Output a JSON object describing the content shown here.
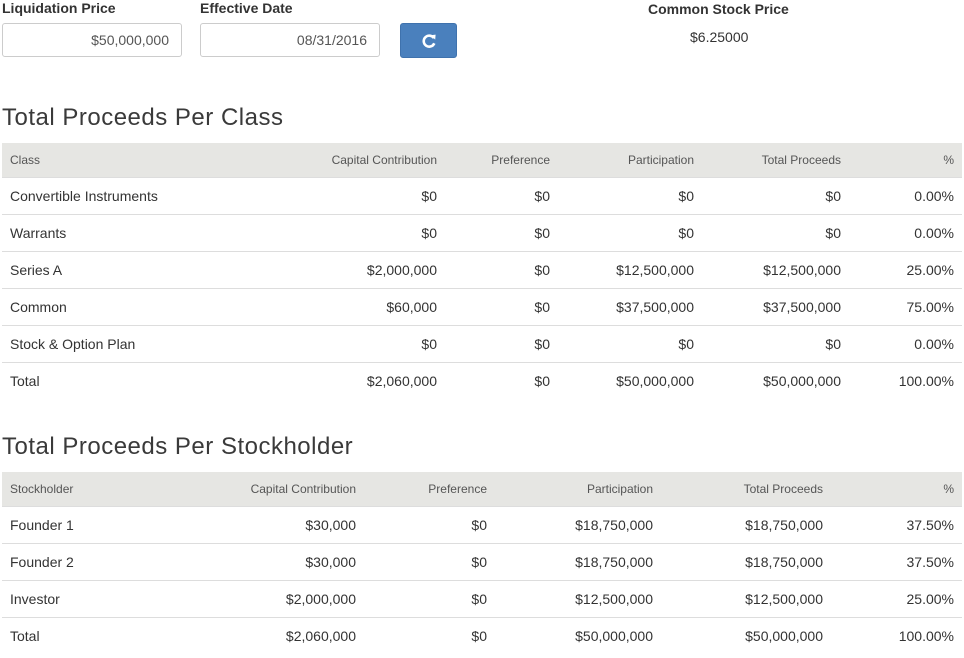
{
  "controls": {
    "liquidation_label": "Liquidation Price",
    "liquidation_value": "$50,000,000",
    "effective_label": "Effective Date",
    "effective_value": "08/31/2016",
    "refresh_icon": "refresh-icon",
    "common_label": "Common Stock Price",
    "common_value": "$6.25000"
  },
  "class_section": {
    "title": "Total Proceeds Per Class",
    "headers": [
      "Class",
      "Capital Contribution",
      "Preference",
      "Participation",
      "Total Proceeds",
      "%"
    ],
    "rows": [
      [
        "Convertible Instruments",
        "$0",
        "$0",
        "$0",
        "$0",
        "0.00%"
      ],
      [
        "Warrants",
        "$0",
        "$0",
        "$0",
        "$0",
        "0.00%"
      ],
      [
        "Series A",
        "$2,000,000",
        "$0",
        "$12,500,000",
        "$12,500,000",
        "25.00%"
      ],
      [
        "Common",
        "$60,000",
        "$0",
        "$37,500,000",
        "$37,500,000",
        "75.00%"
      ],
      [
        "Stock & Option Plan",
        "$0",
        "$0",
        "$0",
        "$0",
        "0.00%"
      ],
      [
        "Total",
        "$2,060,000",
        "$0",
        "$50,000,000",
        "$50,000,000",
        "100.00%"
      ]
    ]
  },
  "holder_section": {
    "title": "Total Proceeds Per Stockholder",
    "headers": [
      "Stockholder",
      "Capital Contribution",
      "Preference",
      "Participation",
      "Total Proceeds",
      "%"
    ],
    "rows": [
      [
        "Founder 1",
        "$30,000",
        "$0",
        "$18,750,000",
        "$18,750,000",
        "37.50%"
      ],
      [
        "Founder 2",
        "$30,000",
        "$0",
        "$18,750,000",
        "$18,750,000",
        "37.50%"
      ],
      [
        "Investor",
        "$2,000,000",
        "$0",
        "$12,500,000",
        "$12,500,000",
        "25.00%"
      ],
      [
        "Total",
        "$2,060,000",
        "$0",
        "$50,000,000",
        "$50,000,000",
        "100.00%"
      ]
    ]
  }
}
